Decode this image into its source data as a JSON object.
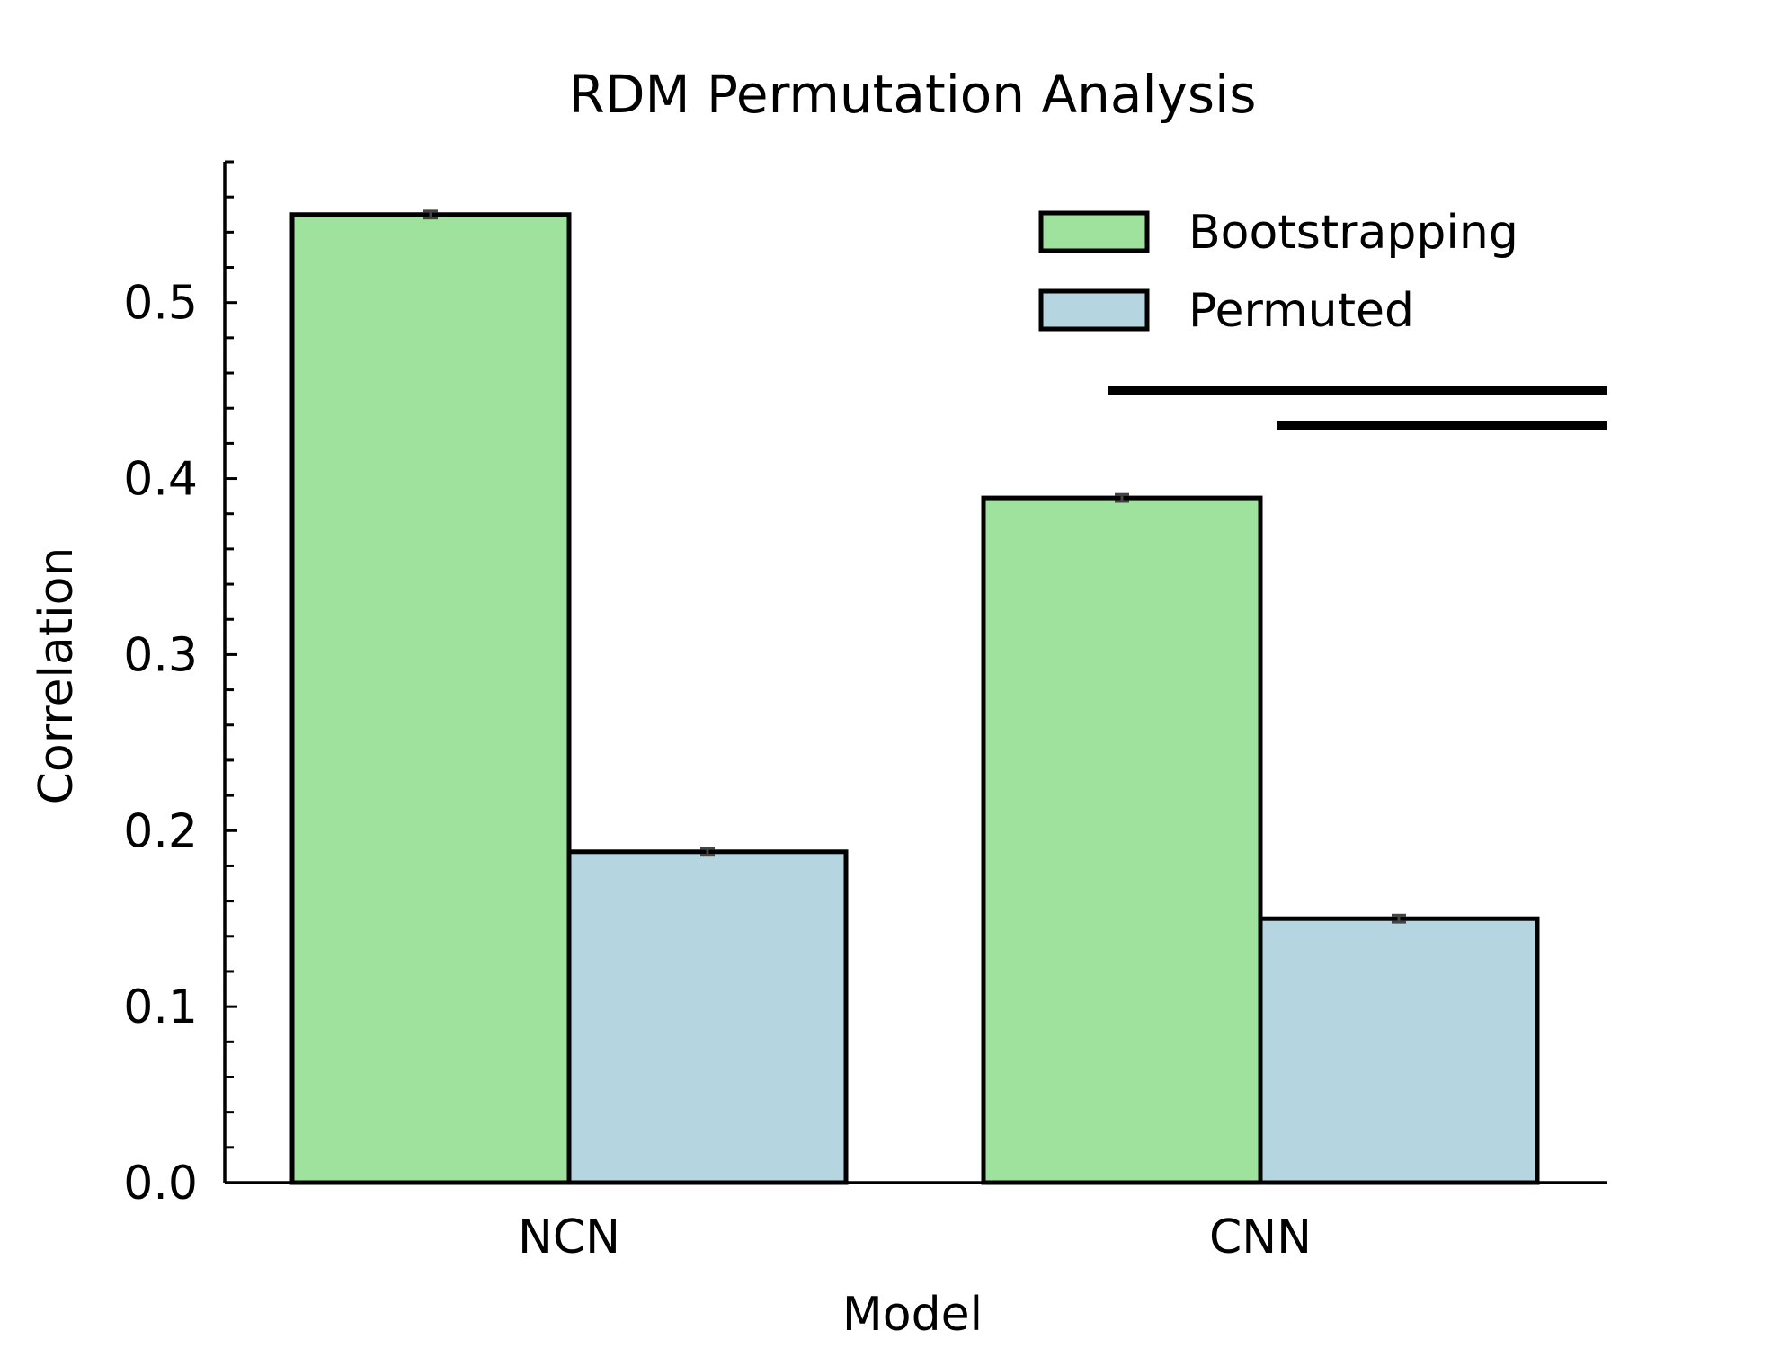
{
  "colors": {
    "bootstrapping": "#9ee29d",
    "permuted": "#b5d5e0",
    "errorbar": "#444444"
  },
  "chart_data": {
    "type": "bar",
    "title": "RDM Permutation Analysis",
    "xlabel": "Model",
    "ylabel": "Correlation",
    "ylim": [
      0.0,
      0.58
    ],
    "yticks": [
      0.0,
      0.1,
      0.2,
      0.3,
      0.4,
      0.5
    ],
    "yticks_labels": [
      "0.0",
      "0.1",
      "0.2",
      "0.3",
      "0.4",
      "0.5"
    ],
    "categories": [
      "NCN",
      "CNN"
    ],
    "series": [
      {
        "name": "Bootstrapping",
        "values": [
          0.55,
          0.389
        ],
        "errors": [
          0.002,
          0.002
        ],
        "color": "#9ee29d"
      },
      {
        "name": "Permuted",
        "values": [
          0.188,
          0.15
        ],
        "errors": [
          0.002,
          0.002
        ],
        "color": "#b5d5e0"
      }
    ],
    "significance_lines": [
      {
        "y": 0.45
      },
      {
        "y": 0.43
      }
    ],
    "legend_position": "top-right",
    "grid": false
  }
}
